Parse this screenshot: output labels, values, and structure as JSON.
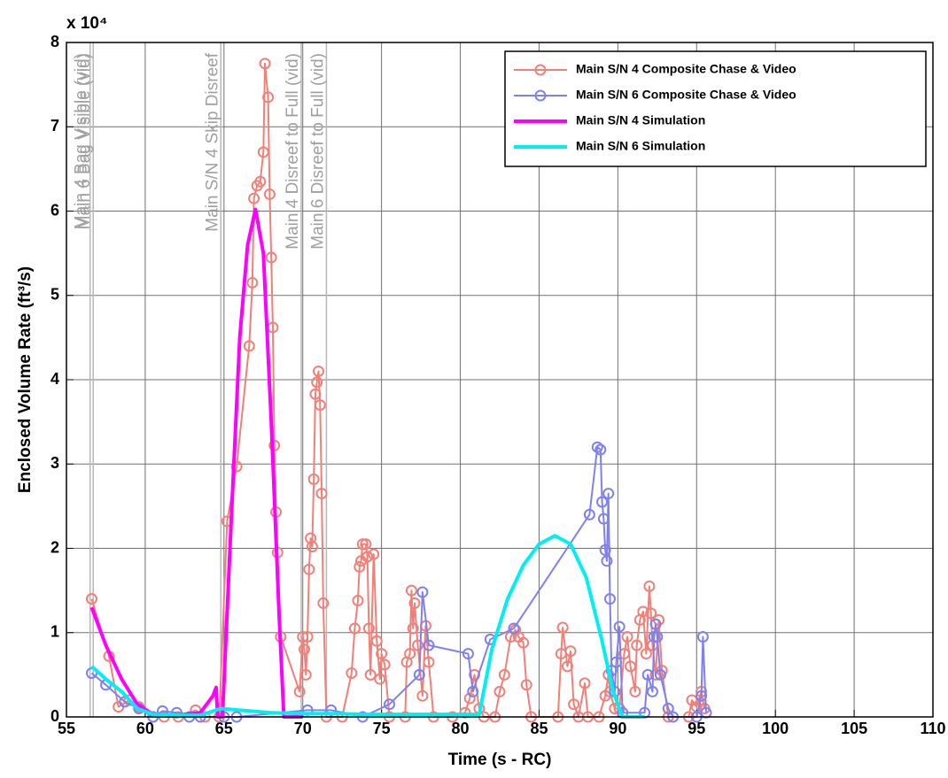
{
  "chart_data": {
    "type": "line",
    "xlabel": "Time (s - RC)",
    "ylabel": "Enclosed Volume Rate (ft³/s)",
    "y_multiplier": "x 10⁴",
    "xlim": [
      55,
      110
    ],
    "xticks": [
      55,
      60,
      65,
      70,
      75,
      80,
      85,
      90,
      95,
      100,
      105,
      110
    ],
    "ylim": [
      0,
      8
    ],
    "yticks": [
      0,
      1,
      2,
      3,
      4,
      5,
      6,
      7,
      8
    ],
    "grid": true,
    "legend": "upper right",
    "events": [
      {
        "x": 56.5,
        "label": "Main 4 Bag Visible (vid)"
      },
      {
        "x": 56.7,
        "label": "Main 6 Bag Visible (vid)"
      },
      {
        "x": 64.8,
        "label": "Main S/N 4 Skip Disreef"
      },
      {
        "x": 69.9,
        "label": "Main 4 Disreef to Full (vid)"
      },
      {
        "x": 71.5,
        "label": "Main 6 Disreef to Full (vid)"
      }
    ],
    "series": [
      {
        "name": "Main S/N 4 Composite Chase & Video",
        "color": "#f08078",
        "marker": "circle",
        "line_width": 2,
        "x": [
          56.6,
          57.7,
          58.3,
          59,
          59.6,
          60.5,
          61.2,
          62.1,
          63.2,
          63.8,
          64.7,
          65.2,
          65.8,
          66.6,
          66.8,
          66.9,
          67.1,
          67.3,
          67.5,
          67.6,
          67.8,
          67.9,
          68,
          68.1,
          68.2,
          68.3,
          68.4,
          68.6,
          69.8,
          70,
          70.1,
          70.2,
          70.3,
          70.4,
          70.5,
          70.6,
          70.7,
          70.8,
          70.9,
          71,
          71.1,
          71.2,
          71.3,
          71.5,
          72.5,
          73.1,
          73.3,
          73.5,
          73.6,
          73.7,
          73.8,
          74,
          74.1,
          74.2,
          74.3,
          74.5,
          74.7,
          74.9,
          75,
          75.2,
          75.5,
          76.5,
          76.6,
          76.8,
          76.9,
          77,
          77.1,
          77.3,
          77.6,
          77.8,
          78,
          78.3,
          79.5,
          80.3,
          80.6,
          80.9,
          81.2,
          81.5,
          82.2,
          82.5,
          82.8,
          83.2,
          83.5,
          83.7,
          84,
          84.2,
          84.5,
          86.2,
          86.4,
          86.5,
          86.8,
          87,
          87.2,
          87.5,
          87.9,
          88.1,
          88.8,
          89.2,
          89.4,
          89.5,
          89.8,
          90.1,
          90.4,
          90.6,
          90.8,
          91.1,
          91.2,
          91.4,
          91.6,
          91.8,
          92,
          92.1,
          92.2,
          92.4,
          92.6,
          92.8,
          93.2,
          94.5,
          94.7,
          95,
          95.3,
          95.5
        ],
        "values": [
          1.4,
          0.72,
          0.12,
          0.2,
          0.12,
          0,
          0,
          0,
          0.08,
          0,
          0,
          2.32,
          2.97,
          4.4,
          5.15,
          6.15,
          6.3,
          6.35,
          6.7,
          7.75,
          7.35,
          6.2,
          5.45,
          4.62,
          3.22,
          2.43,
          1.95,
          0.95,
          0.3,
          0.95,
          0.8,
          0.5,
          0.95,
          1.75,
          2.12,
          2.02,
          2.82,
          3.83,
          3.97,
          4.1,
          3.7,
          2.65,
          1.35,
          0,
          0,
          0.52,
          1.05,
          1.38,
          1.78,
          1.85,
          2.05,
          2.05,
          1.9,
          1.05,
          0.5,
          1.93,
          0.9,
          0.45,
          0.75,
          0.62,
          0,
          0,
          0.65,
          0.75,
          1.5,
          1.05,
          1.35,
          0.85,
          0.25,
          1.08,
          0.65,
          0,
          0,
          0.05,
          0.22,
          0.5,
          0.1,
          0,
          0,
          0.3,
          0.5,
          0.95,
          1.03,
          0.95,
          0.88,
          0.38,
          0,
          0,
          0.75,
          1.06,
          0.6,
          0.78,
          0.15,
          0,
          0.4,
          0,
          0,
          0.25,
          0.5,
          0.3,
          0.1,
          0.1,
          0.75,
          0.95,
          0.6,
          0.3,
          0.85,
          1.15,
          1.25,
          0.75,
          1.55,
          1.23,
          0.85,
          0.5,
          1.15,
          0.55,
          0,
          0,
          0.2,
          0.12,
          0.3,
          0.1
        ]
      },
      {
        "name": "Main S/N 6 Composite Chase & Video",
        "color": "#8080ee",
        "marker": "circle",
        "line_width": 2,
        "x": [
          56.6,
          57.5,
          58.7,
          59.6,
          60.5,
          61.1,
          62,
          62.8,
          63.5,
          65,
          65.8,
          70.3,
          71.8,
          73.8,
          75.5,
          77.4,
          77.6,
          78,
          80.5,
          80.8,
          81.9,
          83.4,
          88.2,
          88.7,
          88.9,
          89,
          89.1,
          89.2,
          89.3,
          89.4,
          89.5,
          89.6,
          89.8,
          89.9,
          90.1,
          90.3,
          91.7,
          91.9,
          92.2,
          92.3,
          92.4,
          92.5,
          92.7,
          93.2,
          93.5,
          95,
          95.3,
          95.4,
          95.6
        ],
        "values": [
          0.52,
          0.38,
          0.18,
          0.1,
          0,
          0.07,
          0.05,
          0,
          0,
          0,
          0,
          0.08,
          0.08,
          0,
          0.15,
          0.5,
          1.48,
          0.85,
          0.75,
          0.3,
          0.92,
          1.05,
          2.4,
          3.2,
          3.17,
          2.55,
          2.35,
          1.98,
          1.85,
          2.65,
          1.4,
          0.55,
          0.3,
          0.65,
          1.07,
          0.05,
          0.05,
          0.5,
          0.3,
          0.95,
          1.1,
          0.95,
          0.5,
          0.1,
          0,
          0,
          0.25,
          0.95,
          0.05
        ]
      },
      {
        "name": "Main S/N 4 Simulation",
        "color": "#ff00ff",
        "marker": "none",
        "line_width": 4,
        "x": [
          56.6,
          57.5,
          58.5,
          59.5,
          60.5,
          62,
          63.5,
          64.3,
          64.5,
          64.6,
          64.9,
          65.5,
          66,
          66.5,
          67,
          67.5,
          68,
          68.5,
          68.8,
          70
        ],
        "values": [
          1.3,
          0.85,
          0.45,
          0.15,
          0.03,
          0.02,
          0.05,
          0.25,
          0.35,
          0,
          0,
          2.5,
          4.5,
          5.6,
          6.02,
          5.5,
          3.5,
          1.2,
          0,
          0
        ]
      },
      {
        "name": "Main S/N 6 Simulation",
        "color": "#00f0f0",
        "marker": "none",
        "line_width": 4,
        "x": [
          56.6,
          57.5,
          58.5,
          59.5,
          60.5,
          62,
          63.5,
          64.8,
          66,
          68,
          70,
          72,
          74,
          76,
          78,
          80,
          81.2,
          82,
          83,
          84,
          85,
          86,
          87,
          88,
          89,
          89.7,
          90.3,
          91.7
        ],
        "values": [
          0.6,
          0.45,
          0.3,
          0.1,
          0.03,
          0.02,
          0.02,
          0.1,
          0.08,
          0.05,
          0.04,
          0.04,
          0.03,
          0.03,
          0.03,
          0.03,
          0.03,
          0.8,
          1.4,
          1.8,
          2.05,
          2.15,
          2.05,
          1.65,
          0.9,
          0.3,
          0,
          0
        ]
      }
    ]
  }
}
